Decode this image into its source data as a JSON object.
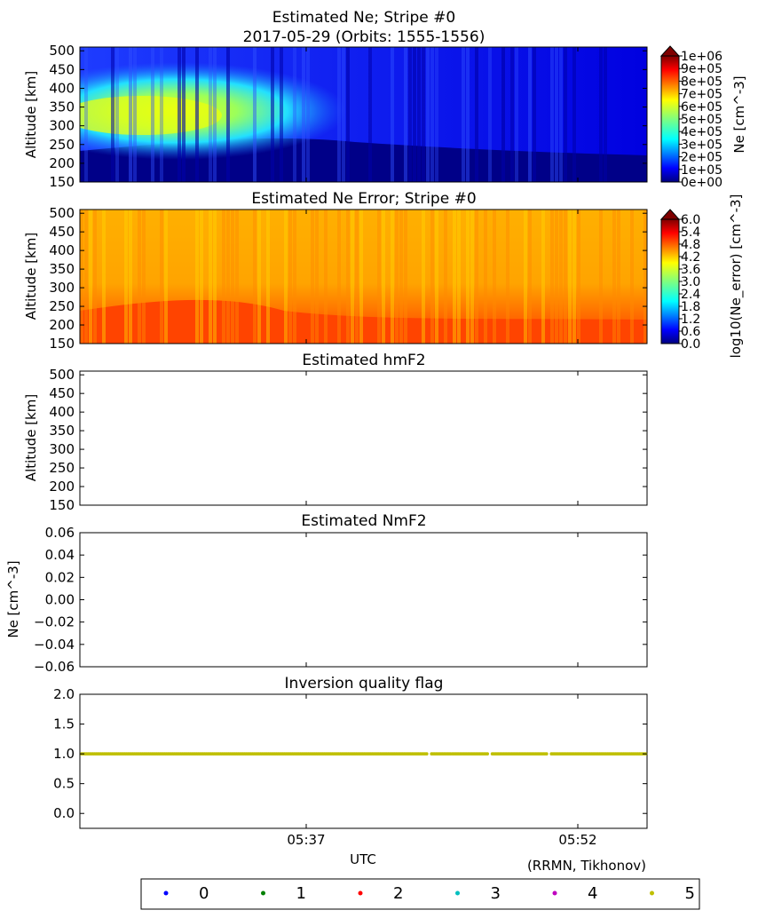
{
  "figure": {
    "title_line1": "Estimated Ne; Stripe #0",
    "title_line2": "2017-05-29 (Orbits: 1555-1556)",
    "footer_credit": "(RRMN, Tikhonov)",
    "xaxis_label": "UTC",
    "xticks": [
      "05:37",
      "05:52"
    ]
  },
  "legend": {
    "entries": [
      {
        "label": "0",
        "color": "#0000ff"
      },
      {
        "label": "1",
        "color": "#008000"
      },
      {
        "label": "2",
        "color": "#ff0000"
      },
      {
        "label": "3",
        "color": "#00bfbf"
      },
      {
        "label": "4",
        "color": "#bf00bf"
      },
      {
        "label": "5",
        "color": "#bfbf00"
      }
    ]
  },
  "chart_data": [
    {
      "type": "heatmap",
      "title": "",
      "ylabel": "Altitude [km]",
      "yticks": [
        "150",
        "200",
        "250",
        "300",
        "350",
        "400",
        "450",
        "500"
      ],
      "ylim": [
        150,
        510
      ],
      "colorbar_label": "Ne [cm^-3]",
      "colorbar_ticks": [
        "0e+00",
        "1e+05",
        "2e+05",
        "3e+05",
        "4e+05",
        "5e+05",
        "6e+05",
        "7e+05",
        "8e+05",
        "9e+05",
        "1e+06"
      ],
      "colormap": "jet"
    },
    {
      "type": "heatmap",
      "title": "Estimated Ne Error; Stripe #0",
      "ylabel": "Altitude [km]",
      "yticks": [
        "150",
        "200",
        "250",
        "300",
        "350",
        "400",
        "450",
        "500"
      ],
      "ylim": [
        150,
        510
      ],
      "colorbar_label": "log10(Ne_error) [cm^-3]",
      "colorbar_ticks": [
        "0.0",
        "0.6",
        "1.2",
        "1.8",
        "2.4",
        "3.0",
        "3.6",
        "4.2",
        "4.8",
        "5.4",
        "6.0"
      ],
      "colormap": "jet"
    },
    {
      "type": "line",
      "title": "Estimated hmF2",
      "ylabel": "Altitude [km]",
      "yticks": [
        "150",
        "200",
        "250",
        "300",
        "350",
        "400",
        "450",
        "500"
      ],
      "ylim": [
        150,
        510
      ],
      "series": []
    },
    {
      "type": "line",
      "title": "Estimated NmF2",
      "ylabel": "Ne [cm^-3]",
      "yticks": [
        "−0.06",
        "−0.04",
        "−0.02",
        "0.00",
        "0.02",
        "0.04",
        "0.06"
      ],
      "ylim": [
        -0.06,
        0.06
      ],
      "series": []
    },
    {
      "type": "scatter",
      "title": "Inversion quality flag",
      "ylabel": "",
      "yticks": [
        "0.0",
        "0.5",
        "1.0",
        "1.5",
        "2.0"
      ],
      "ylim": [
        -0.25,
        2.0
      ],
      "series": [
        {
          "name": "5",
          "value": 1.0
        }
      ]
    }
  ]
}
